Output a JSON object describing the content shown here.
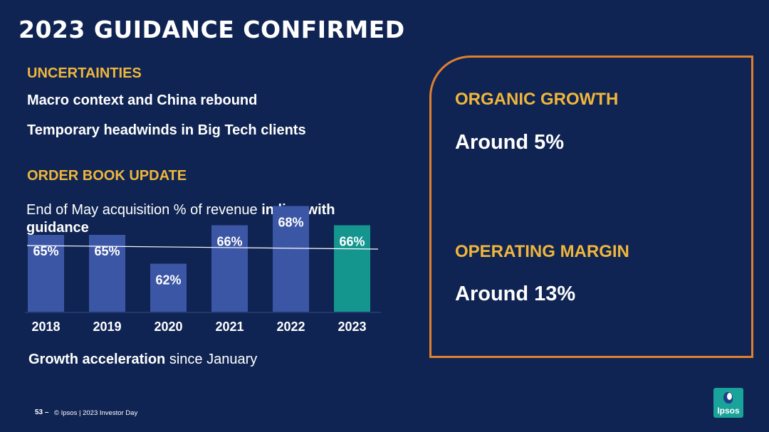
{
  "title": "2023 GUIDANCE CONFIRMED",
  "uncertainties": {
    "heading": "UNCERTAINTIES",
    "items": [
      "Macro context and China rebound",
      "Temporary headwinds in Big Tech clients"
    ]
  },
  "order_book": {
    "heading": "ORDER BOOK UPDATE",
    "desc_plain": "End of May acquisition % of revenue ",
    "desc_bold": "in line with guidance",
    "note_bold": "Growth acceleration",
    "note_plain": " since January"
  },
  "guidance": {
    "organic_heading": "ORGANIC GROWTH",
    "organic_value": "Around 5%",
    "margin_heading": "OPERATING MARGIN",
    "margin_value": "Around 13%"
  },
  "footer": {
    "page": "53 –",
    "copyright": "© Ipsos | 2023 Investor Day"
  },
  "logo_text": "Ipsos",
  "colors": {
    "background": "#0f2452",
    "accent_orange": "#e0802e",
    "heading_gold": "#f0b63c",
    "bar_blue": "#3c56a6",
    "bar_highlight": "#14968e"
  },
  "chart_data": {
    "type": "bar",
    "categories": [
      "2018",
      "2019",
      "2020",
      "2021",
      "2022",
      "2023"
    ],
    "values": [
      65,
      65,
      62,
      66,
      68,
      66
    ],
    "labels": [
      "65%",
      "65%",
      "62%",
      "66%",
      "68%",
      "66%"
    ],
    "highlight_index": 5,
    "reference_line": "in line with guidance",
    "legend": "none",
    "grid": false
  }
}
